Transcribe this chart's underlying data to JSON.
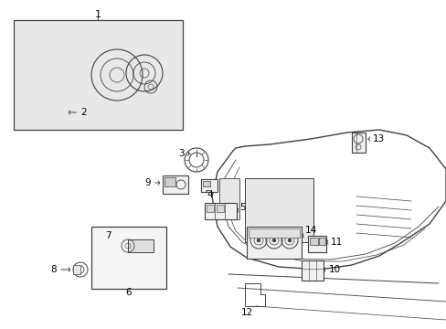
{
  "background_color": "#ffffff",
  "line_color": "#404040",
  "text_color": "#000000",
  "fig_width": 4.89,
  "fig_height": 3.6,
  "dpi": 100
}
